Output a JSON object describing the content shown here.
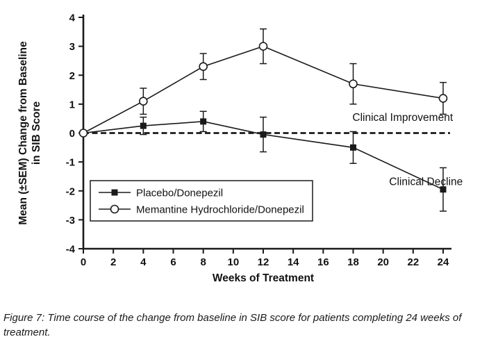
{
  "figure": {
    "caption": "Figure 7: Time course of the change from baseline in SIB score for patients completing 24 weeks of treatment."
  },
  "chart_data": {
    "type": "line",
    "x": [
      0,
      4,
      8,
      12,
      18,
      24
    ],
    "series": [
      {
        "name": "Placebo/Donepezil",
        "marker": "filled-square",
        "values": [
          0,
          0.25,
          0.4,
          -0.05,
          -0.5,
          -1.95
        ],
        "sem": [
          0,
          0.3,
          0.35,
          0.6,
          0.55,
          0.75
        ]
      },
      {
        "name": "Memantine Hydrochloride/Donepezil",
        "marker": "open-circle",
        "values": [
          0,
          1.1,
          2.3,
          3.0,
          1.7,
          1.2
        ],
        "sem": [
          0,
          0.45,
          0.45,
          0.6,
          0.7,
          0.55
        ]
      }
    ],
    "xlabel": "Weeks of Treatment",
    "ylabel_lines": [
      "Mean (±SEM) Change from Baseline",
      "in SIB Score"
    ],
    "xticks": [
      0,
      2,
      4,
      6,
      8,
      10,
      12,
      14,
      16,
      18,
      20,
      22,
      24
    ],
    "yticks": [
      4,
      3,
      2,
      1,
      0,
      -1,
      -2,
      -3,
      -4
    ],
    "xlim": [
      0,
      24
    ],
    "ylim": [
      -4,
      4
    ],
    "grid": false,
    "baseline": {
      "y": 0,
      "style": "dashed"
    },
    "annotations": [
      {
        "text": "Clinical Improvement",
        "x": 17.95,
        "y": 0.42
      },
      {
        "text": "Clinical Decline",
        "x": 20.4,
        "y": -1.8
      }
    ],
    "legend_position": "bottom-left-inside",
    "colors": {
      "line": "#1a1a1a",
      "background": "#ffffff"
    }
  }
}
